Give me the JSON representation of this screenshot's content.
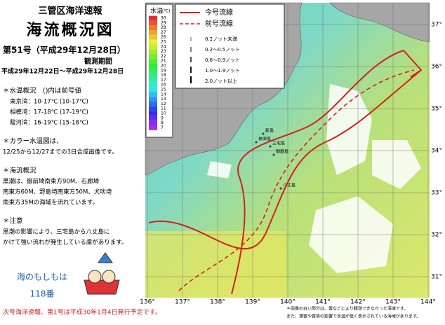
{
  "header": {
    "agency": "三管区海洋速報",
    "title": "海流概況図",
    "issue": "第51号（平成29年12月28日）",
    "period_label": "観測期間",
    "period": "平成29年12月22日～平成29年12月28日"
  },
  "notes": [
    {
      "heading": "＊水温概況　()内は前号値",
      "lines": [
        "東京湾：10-17℃ (10-17℃)",
        "相模湾：17-18℃ (17-19℃)",
        "駿河湾：16-19℃ (15-18℃)"
      ]
    },
    {
      "heading": "＊カラー水温図は、",
      "lines": [
        "12/25から12/27までの3日合成画像です。"
      ]
    },
    {
      "heading": "＊海流概況",
      "lines": [
        "黒潮は、御前埼南東方90M、石廊埼",
        "南東方60M、野島埼南東方50M、犬吠埼",
        "南東方35Mの海域を流れています。"
      ]
    },
    {
      "heading": "＊注意",
      "lines": [
        "黒潮の影響により、三宅島から八丈島に",
        "かけて強い流れが発生している虞があります。"
      ]
    }
  ],
  "emergency": {
    "line1": "海のもしもは",
    "line2": "118番"
  },
  "footer": "次号海洋速報、第1号は平成30年1月4日発行予定です。",
  "map": {
    "temp_legend": {
      "title": "水温",
      "unit": "(℃)",
      "labels": [
        30,
        29,
        28,
        27,
        26,
        25,
        24,
        23,
        22,
        21,
        20,
        19,
        18,
        17,
        16,
        15,
        14,
        13,
        12,
        11,
        10,
        9,
        8,
        7
      ]
    },
    "line_legend": [
      "今号流線",
      "前号流線"
    ],
    "speed_legend": [
      "0.2ノット未満",
      "0.2～0.5ノット",
      "0.6～0.9ノット",
      "1.0～1.9ノット",
      "2.0ノット以上"
    ],
    "lon_ticks": [
      {
        "value": 136,
        "label": "136°"
      },
      {
        "value": 137,
        "label": "137°"
      },
      {
        "value": 138,
        "label": "138°"
      },
      {
        "value": 139,
        "label": "139°"
      },
      {
        "value": 140,
        "label": "140°"
      },
      {
        "value": 141,
        "label": "141°"
      },
      {
        "value": 142,
        "label": "142°"
      },
      {
        "value": 143,
        "label": "143°"
      },
      {
        "value": 144,
        "label": "144°"
      }
    ],
    "lat_ticks": [
      {
        "value": 37,
        "label": "37°"
      },
      {
        "value": 36,
        "label": "36°"
      },
      {
        "value": 35,
        "label": "35°"
      },
      {
        "value": 34,
        "label": "34°"
      },
      {
        "value": 33,
        "label": "33°"
      },
      {
        "value": 32,
        "label": "32°"
      },
      {
        "value": 31,
        "label": "31°"
      }
    ],
    "places": [
      {
        "name": "新島",
        "lon": 139.3,
        "lat": 34.4
      },
      {
        "name": "神津島",
        "lon": 139.1,
        "lat": 34.2
      },
      {
        "name": "三宅島",
        "lon": 139.5,
        "lat": 34.1
      },
      {
        "name": "御蔵島",
        "lon": 139.6,
        "lat": 33.9
      },
      {
        "name": "八丈島",
        "lon": 139.8,
        "lat": 33.1
      }
    ],
    "caption": [
      "＊画像の白い部分は、雲などにより観測できなかった海域です。",
      "また、薄雲や霧等の影響で水温が低く表示されている海域があります。"
    ]
  }
}
